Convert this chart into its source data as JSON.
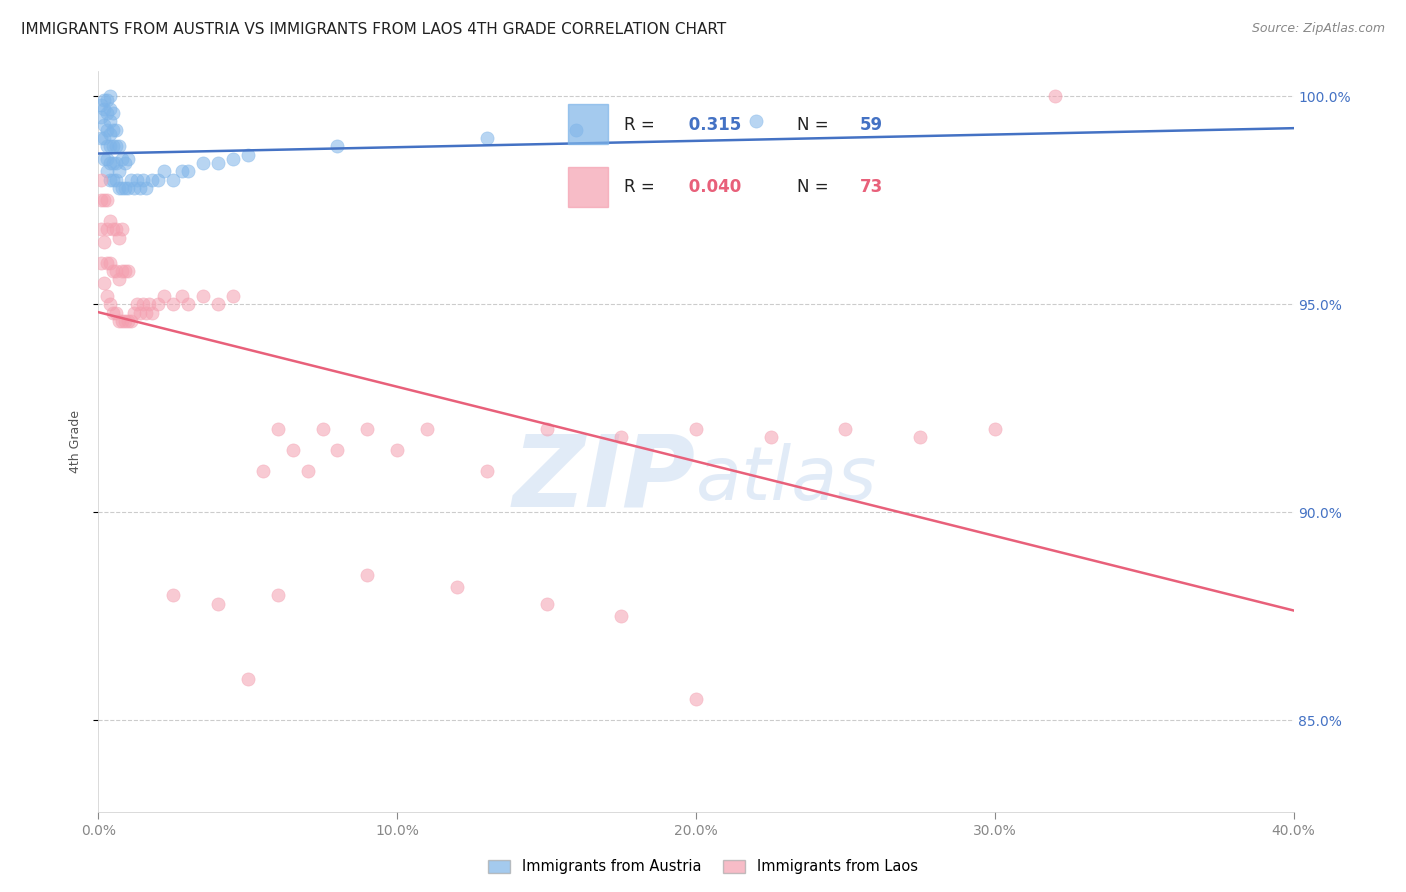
{
  "title": "IMMIGRANTS FROM AUSTRIA VS IMMIGRANTS FROM LAOS 4TH GRADE CORRELATION CHART",
  "source": "Source: ZipAtlas.com",
  "ylabel": "4th Grade",
  "xlim": [
    0.0,
    0.4
  ],
  "ylim": [
    0.828,
    1.006
  ],
  "xticks": [
    0.0,
    0.1,
    0.2,
    0.3,
    0.4
  ],
  "xtick_labels": [
    "0.0%",
    "10.0%",
    "20.0%",
    "30.0%",
    "40.0%"
  ],
  "yticks": [
    0.85,
    0.9,
    0.95,
    1.0
  ],
  "ytick_labels": [
    "85.0%",
    "90.0%",
    "95.0%",
    "100.0%"
  ],
  "austria_color": "#7EB4E8",
  "laos_color": "#F4A0B0",
  "austria_line_color": "#4472C4",
  "laos_line_color": "#E8607A",
  "austria_r": 0.315,
  "austria_n": 59,
  "laos_r": 0.04,
  "laos_n": 73,
  "background_color": "#ffffff",
  "grid_color": "#cccccc",
  "title_fontsize": 11,
  "source_fontsize": 9,
  "tick_color_right": "#4472C4",
  "watermark_color": "#C5D8F0",
  "watermark_alpha": 0.5,
  "austria_x": [
    0.001,
    0.001,
    0.001,
    0.002,
    0.002,
    0.002,
    0.002,
    0.002,
    0.003,
    0.003,
    0.003,
    0.003,
    0.003,
    0.003,
    0.004,
    0.004,
    0.004,
    0.004,
    0.004,
    0.004,
    0.004,
    0.005,
    0.005,
    0.005,
    0.005,
    0.005,
    0.006,
    0.006,
    0.006,
    0.006,
    0.007,
    0.007,
    0.007,
    0.008,
    0.008,
    0.009,
    0.009,
    0.01,
    0.01,
    0.011,
    0.012,
    0.013,
    0.014,
    0.015,
    0.016,
    0.018,
    0.02,
    0.022,
    0.025,
    0.028,
    0.03,
    0.035,
    0.04,
    0.045,
    0.05,
    0.08,
    0.13,
    0.16,
    0.22
  ],
  "austria_y": [
    0.99,
    0.995,
    0.998,
    0.985,
    0.99,
    0.993,
    0.997,
    0.999,
    0.982,
    0.985,
    0.988,
    0.992,
    0.996,
    0.999,
    0.98,
    0.984,
    0.988,
    0.991,
    0.994,
    0.997,
    1.0,
    0.98,
    0.984,
    0.988,
    0.992,
    0.996,
    0.98,
    0.984,
    0.988,
    0.992,
    0.978,
    0.982,
    0.988,
    0.978,
    0.985,
    0.978,
    0.984,
    0.978,
    0.985,
    0.98,
    0.978,
    0.98,
    0.978,
    0.98,
    0.978,
    0.98,
    0.98,
    0.982,
    0.98,
    0.982,
    0.982,
    0.984,
    0.984,
    0.985,
    0.986,
    0.988,
    0.99,
    0.992,
    0.994
  ],
  "laos_x": [
    0.001,
    0.001,
    0.001,
    0.001,
    0.002,
    0.002,
    0.002,
    0.003,
    0.003,
    0.003,
    0.003,
    0.004,
    0.004,
    0.004,
    0.005,
    0.005,
    0.005,
    0.006,
    0.006,
    0.006,
    0.007,
    0.007,
    0.007,
    0.008,
    0.008,
    0.008,
    0.009,
    0.009,
    0.01,
    0.01,
    0.011,
    0.012,
    0.013,
    0.014,
    0.015,
    0.016,
    0.017,
    0.018,
    0.02,
    0.022,
    0.025,
    0.028,
    0.03,
    0.035,
    0.04,
    0.045,
    0.05,
    0.055,
    0.06,
    0.065,
    0.07,
    0.075,
    0.08,
    0.09,
    0.1,
    0.11,
    0.13,
    0.15,
    0.175,
    0.2,
    0.225,
    0.25,
    0.275,
    0.3,
    0.2,
    0.175,
    0.15,
    0.12,
    0.09,
    0.06,
    0.04,
    0.025,
    0.32
  ],
  "laos_y": [
    0.96,
    0.968,
    0.975,
    0.98,
    0.955,
    0.965,
    0.975,
    0.952,
    0.96,
    0.968,
    0.975,
    0.95,
    0.96,
    0.97,
    0.948,
    0.958,
    0.968,
    0.948,
    0.958,
    0.968,
    0.946,
    0.956,
    0.966,
    0.946,
    0.958,
    0.968,
    0.946,
    0.958,
    0.946,
    0.958,
    0.946,
    0.948,
    0.95,
    0.948,
    0.95,
    0.948,
    0.95,
    0.948,
    0.95,
    0.952,
    0.95,
    0.952,
    0.95,
    0.952,
    0.95,
    0.952,
    0.86,
    0.91,
    0.92,
    0.915,
    0.91,
    0.92,
    0.915,
    0.92,
    0.915,
    0.92,
    0.91,
    0.92,
    0.918,
    0.92,
    0.918,
    0.92,
    0.918,
    0.92,
    0.855,
    0.875,
    0.878,
    0.882,
    0.885,
    0.88,
    0.878,
    0.88,
    1.0
  ]
}
